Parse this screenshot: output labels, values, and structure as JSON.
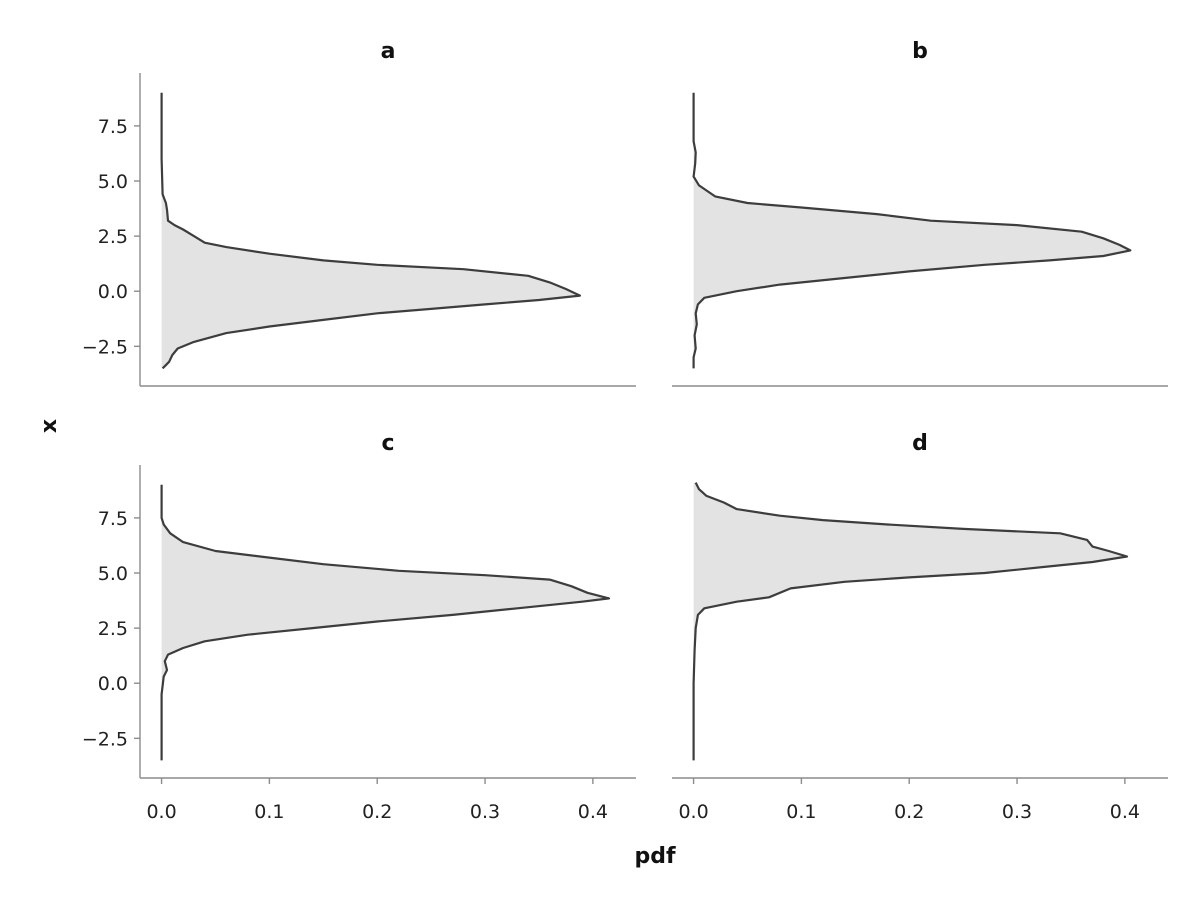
{
  "chart_data": {
    "type": "area",
    "xlabel": "pdf",
    "ylabel": "x",
    "xlim": [
      -0.02,
      0.44
    ],
    "ylim": [
      -4.3,
      9.9
    ],
    "xticks": [
      0.0,
      0.1,
      0.2,
      0.3,
      0.4
    ],
    "xtick_labels": [
      "0.0",
      "0.1",
      "0.2",
      "0.3",
      "0.4"
    ],
    "yticks": [
      -2.5,
      0.0,
      2.5,
      5.0,
      7.5
    ],
    "ytick_labels": [
      "−2.5",
      "0.0",
      "2.5",
      "5.0",
      "7.5"
    ],
    "grid": false,
    "colors": {
      "fill": "#e3e3e3",
      "line": "#3d3d3d"
    },
    "panels": [
      {
        "title": "a",
        "points": [
          [
            0.0,
            9.0
          ],
          [
            0.0,
            6.0
          ],
          [
            0.001,
            4.4
          ],
          [
            0.004,
            4.0
          ],
          [
            0.005,
            3.7
          ],
          [
            0.006,
            3.2
          ],
          [
            0.012,
            3.0
          ],
          [
            0.02,
            2.8
          ],
          [
            0.03,
            2.5
          ],
          [
            0.04,
            2.2
          ],
          [
            0.06,
            2.0
          ],
          [
            0.1,
            1.7
          ],
          [
            0.15,
            1.4
          ],
          [
            0.2,
            1.2
          ],
          [
            0.28,
            1.0
          ],
          [
            0.34,
            0.7
          ],
          [
            0.36,
            0.4
          ],
          [
            0.375,
            0.1
          ],
          [
            0.388,
            -0.2
          ],
          [
            0.35,
            -0.4
          ],
          [
            0.3,
            -0.6
          ],
          [
            0.25,
            -0.8
          ],
          [
            0.2,
            -1.0
          ],
          [
            0.15,
            -1.3
          ],
          [
            0.1,
            -1.6
          ],
          [
            0.06,
            -1.9
          ],
          [
            0.03,
            -2.3
          ],
          [
            0.015,
            -2.6
          ],
          [
            0.01,
            -2.9
          ],
          [
            0.007,
            -3.2
          ],
          [
            0.003,
            -3.4
          ],
          [
            0.001,
            -3.5
          ]
        ]
      },
      {
        "title": "b",
        "points": [
          [
            0.0,
            9.0
          ],
          [
            0.0,
            6.8
          ],
          [
            0.002,
            6.3
          ],
          [
            0.0015,
            5.8
          ],
          [
            0.0,
            5.2
          ],
          [
            0.005,
            4.8
          ],
          [
            0.02,
            4.3
          ],
          [
            0.05,
            4.0
          ],
          [
            0.1,
            3.8
          ],
          [
            0.17,
            3.5
          ],
          [
            0.22,
            3.2
          ],
          [
            0.3,
            3.0
          ],
          [
            0.36,
            2.7
          ],
          [
            0.38,
            2.4
          ],
          [
            0.395,
            2.1
          ],
          [
            0.405,
            1.85
          ],
          [
            0.38,
            1.6
          ],
          [
            0.33,
            1.4
          ],
          [
            0.27,
            1.2
          ],
          [
            0.2,
            0.9
          ],
          [
            0.14,
            0.6
          ],
          [
            0.08,
            0.3
          ],
          [
            0.04,
            0.0
          ],
          [
            0.01,
            -0.3
          ],
          [
            0.004,
            -0.6
          ],
          [
            0.002,
            -1.0
          ],
          [
            0.003,
            -1.5
          ],
          [
            0.001,
            -2.0
          ],
          [
            0.002,
            -2.6
          ],
          [
            0.0,
            -3.0
          ],
          [
            0.0,
            -3.5
          ]
        ]
      },
      {
        "title": "c",
        "points": [
          [
            0.0,
            9.0
          ],
          [
            0.0,
            7.5
          ],
          [
            0.002,
            7.2
          ],
          [
            0.008,
            6.8
          ],
          [
            0.02,
            6.4
          ],
          [
            0.05,
            6.0
          ],
          [
            0.1,
            5.7
          ],
          [
            0.15,
            5.4
          ],
          [
            0.22,
            5.1
          ],
          [
            0.3,
            4.9
          ],
          [
            0.36,
            4.7
          ],
          [
            0.38,
            4.4
          ],
          [
            0.395,
            4.1
          ],
          [
            0.415,
            3.85
          ],
          [
            0.39,
            3.7
          ],
          [
            0.33,
            3.4
          ],
          [
            0.27,
            3.1
          ],
          [
            0.2,
            2.8
          ],
          [
            0.14,
            2.5
          ],
          [
            0.08,
            2.2
          ],
          [
            0.04,
            1.9
          ],
          [
            0.02,
            1.6
          ],
          [
            0.006,
            1.3
          ],
          [
            0.003,
            1.0
          ],
          [
            0.005,
            0.6
          ],
          [
            0.002,
            0.3
          ],
          [
            0.0,
            -0.5
          ],
          [
            0.0,
            -3.5
          ]
        ]
      },
      {
        "title": "d",
        "points": [
          [
            0.002,
            9.1
          ],
          [
            0.005,
            8.8
          ],
          [
            0.012,
            8.5
          ],
          [
            0.028,
            8.2
          ],
          [
            0.04,
            7.9
          ],
          [
            0.08,
            7.6
          ],
          [
            0.12,
            7.4
          ],
          [
            0.18,
            7.2
          ],
          [
            0.25,
            7.0
          ],
          [
            0.34,
            6.8
          ],
          [
            0.365,
            6.5
          ],
          [
            0.37,
            6.2
          ],
          [
            0.385,
            6.0
          ],
          [
            0.402,
            5.75
          ],
          [
            0.37,
            5.5
          ],
          [
            0.33,
            5.3
          ],
          [
            0.27,
            5.0
          ],
          [
            0.2,
            4.8
          ],
          [
            0.14,
            4.6
          ],
          [
            0.09,
            4.3
          ],
          [
            0.07,
            3.9
          ],
          [
            0.04,
            3.7
          ],
          [
            0.01,
            3.4
          ],
          [
            0.004,
            3.1
          ],
          [
            0.002,
            2.5
          ],
          [
            0.001,
            1.5
          ],
          [
            0.0,
            0.0
          ],
          [
            0.0,
            -3.5
          ]
        ]
      }
    ]
  }
}
